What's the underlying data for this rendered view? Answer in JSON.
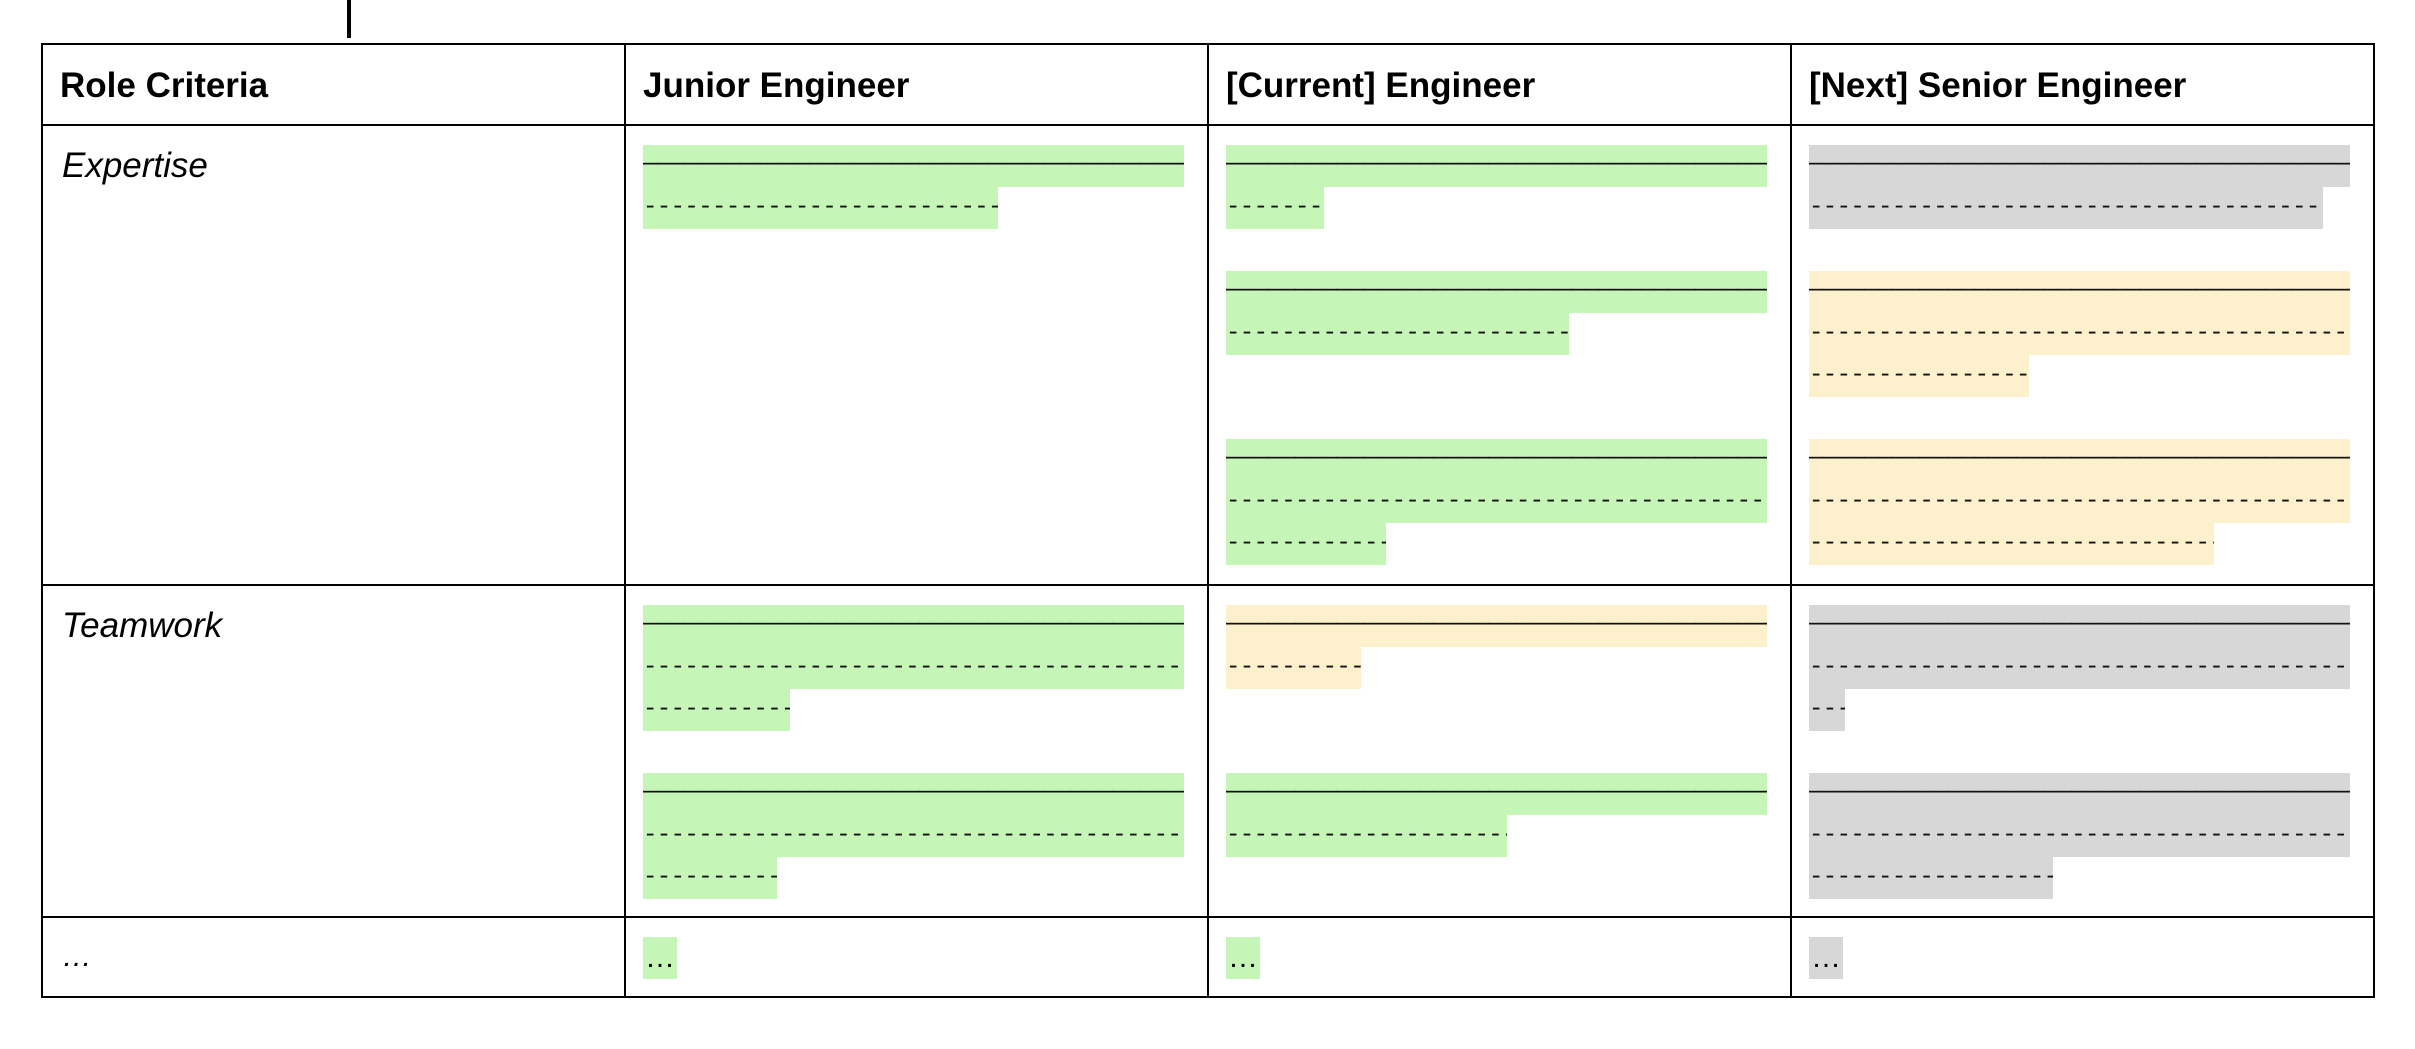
{
  "table": {
    "headers": [
      "Role Criteria",
      "Junior Engineer",
      "[Current] Engineer",
      "[Next] Senior Engineer"
    ],
    "rows": [
      {
        "criterion": "Expertise"
      },
      {
        "criterion": "Teamwork"
      },
      {
        "criterion": "…"
      }
    ],
    "ellipsis": "…"
  },
  "colors": {
    "green": "#c6f5b8",
    "yellow": "#fdf0cc",
    "grey": "#d7d7d7"
  }
}
